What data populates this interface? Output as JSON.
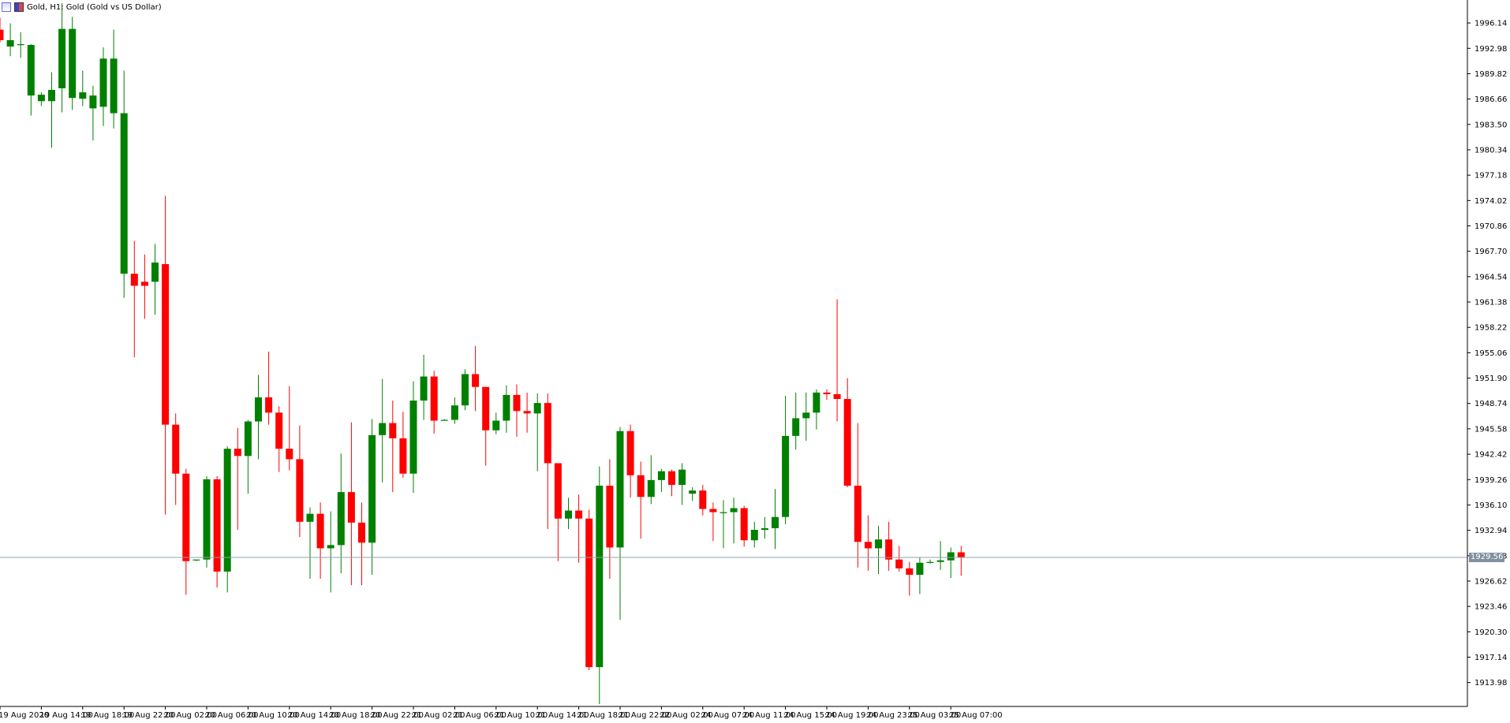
{
  "window": {
    "title": "Gold, H1:  Gold (Gold vs US Dollar)",
    "icons": [
      "window-icon",
      "chart-type-icon"
    ]
  },
  "colors": {
    "bull": "#008000",
    "bear": "#ff0000",
    "bid_line": "#8fa0b0",
    "bid_tag_bg": "#8090a0",
    "axis": "#000000",
    "background": "#ffffff"
  },
  "bid": {
    "price_label": "1929.56",
    "price": 1929.56
  },
  "chart_data": {
    "type": "candlestick",
    "symbol": "Gold",
    "timeframe": "H1",
    "ylim": [
      1911.0,
      1999.0
    ],
    "y_ticks": [
      "1996.14",
      "1992.98",
      "1989.82",
      "1986.66",
      "1983.50",
      "1980.34",
      "1977.18",
      "1974.02",
      "1970.86",
      "1967.70",
      "1964.54",
      "1961.38",
      "1958.22",
      "1955.06",
      "1951.90",
      "1948.74",
      "1945.58",
      "1942.42",
      "1939.26",
      "1936.10",
      "1932.94",
      "1929.78",
      "1926.62",
      "1923.46",
      "1920.30",
      "1917.14",
      "1913.98"
    ],
    "x_ticks": [
      {
        "label": "19 Aug 2020",
        "bar": 0
      },
      {
        "label": "19 Aug 14:00",
        "bar": 4
      },
      {
        "label": "19 Aug 18:00",
        "bar": 8
      },
      {
        "label": "19 Aug 22:00",
        "bar": 12
      },
      {
        "label": "20 Aug 02:00",
        "bar": 16
      },
      {
        "label": "20 Aug 06:00",
        "bar": 20
      },
      {
        "label": "20 Aug 10:00",
        "bar": 24
      },
      {
        "label": "20 Aug 14:00",
        "bar": 28
      },
      {
        "label": "20 Aug 18:00",
        "bar": 32
      },
      {
        "label": "20 Aug 22:00",
        "bar": 36
      },
      {
        "label": "21 Aug 02:00",
        "bar": 40
      },
      {
        "label": "21 Aug 06:00",
        "bar": 44
      },
      {
        "label": "21 Aug 10:00",
        "bar": 48
      },
      {
        "label": "21 Aug 14:00",
        "bar": 52
      },
      {
        "label": "21 Aug 18:00",
        "bar": 56
      },
      {
        "label": "21 Aug 22:00",
        "bar": 60
      },
      {
        "label": "22 Aug 02:00",
        "bar": 64
      },
      {
        "label": "24 Aug 07:00",
        "bar": 68
      },
      {
        "label": "24 Aug 11:00",
        "bar": 72
      },
      {
        "label": "24 Aug 15:00",
        "bar": 76
      },
      {
        "label": "24 Aug 19:00",
        "bar": 80
      },
      {
        "label": "24 Aug 23:00",
        "bar": 84
      },
      {
        "label": "25 Aug 03:00",
        "bar": 88
      },
      {
        "label": "25 Aug 07:00",
        "bar": 92
      }
    ],
    "candles": [
      {
        "o": 1995.3,
        "h": 1996.8,
        "l": 1993.7,
        "c": 1994.0
      },
      {
        "o": 1993.2,
        "h": 1996.1,
        "l": 1992.0,
        "c": 1994.0
      },
      {
        "o": 1993.5,
        "h": 1995.0,
        "l": 1991.8,
        "c": 1993.5
      },
      {
        "o": 1987.1,
        "h": 1993.5,
        "l": 1984.6,
        "c": 1993.4
      },
      {
        "o": 1986.4,
        "h": 1987.5,
        "l": 1985.8,
        "c": 1987.2
      },
      {
        "o": 1986.4,
        "h": 1990.0,
        "l": 1980.6,
        "c": 1987.8
      },
      {
        "o": 1988.0,
        "h": 1998.6,
        "l": 1985.0,
        "c": 1995.4
      },
      {
        "o": 1986.8,
        "h": 1996.9,
        "l": 1985.3,
        "c": 1995.4
      },
      {
        "o": 1986.7,
        "h": 1990.2,
        "l": 1985.8,
        "c": 1987.5
      },
      {
        "o": 1985.5,
        "h": 1988.3,
        "l": 1981.5,
        "c": 1987.1
      },
      {
        "o": 1985.7,
        "h": 1993.1,
        "l": 1983.3,
        "c": 1991.7
      },
      {
        "o": 1984.9,
        "h": 1995.3,
        "l": 1983.0,
        "c": 1991.7
      },
      {
        "o": 1964.9,
        "h": 1990.2,
        "l": 1961.9,
        "c": 1984.9
      },
      {
        "o": 1964.9,
        "h": 1969.0,
        "l": 1954.5,
        "c": 1963.4
      },
      {
        "o": 1963.9,
        "h": 1967.3,
        "l": 1959.3,
        "c": 1963.4
      },
      {
        "o": 1963.9,
        "h": 1968.6,
        "l": 1959.8,
        "c": 1966.3
      },
      {
        "o": 1966.1,
        "h": 1974.6,
        "l": 1934.9,
        "c": 1946.1
      },
      {
        "o": 1946.1,
        "h": 1947.5,
        "l": 1936.1,
        "c": 1940.0
      },
      {
        "o": 1940.0,
        "h": 1940.6,
        "l": 1924.9,
        "c": 1929.1
      },
      {
        "o": 1929.2,
        "h": 1929.3,
        "l": 1929.1,
        "c": 1929.3
      },
      {
        "o": 1929.3,
        "h": 1939.7,
        "l": 1928.3,
        "c": 1939.3
      },
      {
        "o": 1939.3,
        "h": 1939.7,
        "l": 1925.8,
        "c": 1927.8
      },
      {
        "o": 1927.8,
        "h": 1943.4,
        "l": 1925.2,
        "c": 1943.1
      },
      {
        "o": 1943.1,
        "h": 1945.7,
        "l": 1933.0,
        "c": 1942.2
      },
      {
        "o": 1942.2,
        "h": 1946.7,
        "l": 1937.5,
        "c": 1946.5
      },
      {
        "o": 1946.5,
        "h": 1952.3,
        "l": 1941.8,
        "c": 1949.5
      },
      {
        "o": 1949.5,
        "h": 1955.2,
        "l": 1946.1,
        "c": 1947.6
      },
      {
        "o": 1947.6,
        "h": 1948.4,
        "l": 1940.2,
        "c": 1943.1
      },
      {
        "o": 1943.1,
        "h": 1950.9,
        "l": 1940.4,
        "c": 1941.8
      },
      {
        "o": 1941.8,
        "h": 1946.0,
        "l": 1932.1,
        "c": 1934.0
      },
      {
        "o": 1934.0,
        "h": 1935.8,
        "l": 1926.9,
        "c": 1935.0
      },
      {
        "o": 1935.0,
        "h": 1936.4,
        "l": 1926.9,
        "c": 1930.7
      },
      {
        "o": 1930.7,
        "h": 1935.3,
        "l": 1925.2,
        "c": 1931.1
      },
      {
        "o": 1931.1,
        "h": 1942.5,
        "l": 1927.6,
        "c": 1937.7
      },
      {
        "o": 1937.7,
        "h": 1946.4,
        "l": 1926.1,
        "c": 1933.9
      },
      {
        "o": 1933.9,
        "h": 1936.4,
        "l": 1926.1,
        "c": 1931.4
      },
      {
        "o": 1931.4,
        "h": 1946.8,
        "l": 1927.4,
        "c": 1944.8
      },
      {
        "o": 1944.8,
        "h": 1951.8,
        "l": 1938.9,
        "c": 1946.3
      },
      {
        "o": 1946.3,
        "h": 1949.1,
        "l": 1937.7,
        "c": 1944.4
      },
      {
        "o": 1944.4,
        "h": 1947.7,
        "l": 1939.5,
        "c": 1940.0
      },
      {
        "o": 1940.0,
        "h": 1951.5,
        "l": 1937.6,
        "c": 1949.1
      },
      {
        "o": 1949.1,
        "h": 1954.8,
        "l": 1946.7,
        "c": 1952.1
      },
      {
        "o": 1952.1,
        "h": 1952.8,
        "l": 1945.0,
        "c": 1946.6
      },
      {
        "o": 1946.7,
        "h": 1946.8,
        "l": 1946.6,
        "c": 1946.7
      },
      {
        "o": 1946.7,
        "h": 1949.5,
        "l": 1946.2,
        "c": 1948.5
      },
      {
        "o": 1948.5,
        "h": 1953.0,
        "l": 1947.9,
        "c": 1952.4
      },
      {
        "o": 1952.4,
        "h": 1955.9,
        "l": 1947.8,
        "c": 1950.8
      },
      {
        "o": 1950.8,
        "h": 1950.8,
        "l": 1941.0,
        "c": 1945.4
      },
      {
        "o": 1945.4,
        "h": 1947.6,
        "l": 1944.9,
        "c": 1946.6
      },
      {
        "o": 1946.6,
        "h": 1951.0,
        "l": 1945.1,
        "c": 1949.8
      },
      {
        "o": 1949.8,
        "h": 1951.1,
        "l": 1944.6,
        "c": 1947.8
      },
      {
        "o": 1947.8,
        "h": 1950.1,
        "l": 1945.1,
        "c": 1947.5
      },
      {
        "o": 1947.5,
        "h": 1950.0,
        "l": 1940.3,
        "c": 1948.8
      },
      {
        "o": 1948.8,
        "h": 1950.0,
        "l": 1933.1,
        "c": 1941.3
      },
      {
        "o": 1941.3,
        "h": 1941.3,
        "l": 1929.1,
        "c": 1934.4
      },
      {
        "o": 1934.4,
        "h": 1937.0,
        "l": 1933.1,
        "c": 1935.4
      },
      {
        "o": 1935.4,
        "h": 1937.4,
        "l": 1928.9,
        "c": 1934.4
      },
      {
        "o": 1934.4,
        "h": 1935.5,
        "l": 1915.5,
        "c": 1915.9
      },
      {
        "o": 1915.9,
        "h": 1940.9,
        "l": 1911.3,
        "c": 1938.5
      },
      {
        "o": 1938.5,
        "h": 1941.8,
        "l": 1926.9,
        "c": 1930.8
      },
      {
        "o": 1930.8,
        "h": 1945.8,
        "l": 1921.8,
        "c": 1945.3
      },
      {
        "o": 1945.3,
        "h": 1946.1,
        "l": 1937.0,
        "c": 1939.8
      },
      {
        "o": 1939.8,
        "h": 1941.5,
        "l": 1931.9,
        "c": 1937.1
      },
      {
        "o": 1937.1,
        "h": 1942.3,
        "l": 1936.2,
        "c": 1939.2
      },
      {
        "o": 1939.2,
        "h": 1940.6,
        "l": 1937.7,
        "c": 1940.3
      },
      {
        "o": 1940.3,
        "h": 1940.5,
        "l": 1937.2,
        "c": 1938.6
      },
      {
        "o": 1938.6,
        "h": 1941.3,
        "l": 1936.1,
        "c": 1940.5
      },
      {
        "o": 1937.5,
        "h": 1938.3,
        "l": 1936.6,
        "c": 1937.9
      },
      {
        "o": 1937.9,
        "h": 1938.6,
        "l": 1934.8,
        "c": 1935.6
      },
      {
        "o": 1935.6,
        "h": 1936.4,
        "l": 1931.6,
        "c": 1935.2
      },
      {
        "o": 1935.2,
        "h": 1936.7,
        "l": 1930.7,
        "c": 1935.2
      },
      {
        "o": 1935.2,
        "h": 1937.0,
        "l": 1931.3,
        "c": 1935.7
      },
      {
        "o": 1935.7,
        "h": 1936.0,
        "l": 1930.9,
        "c": 1931.7
      },
      {
        "o": 1931.7,
        "h": 1934.0,
        "l": 1930.8,
        "c": 1933.0
      },
      {
        "o": 1933.0,
        "h": 1934.6,
        "l": 1931.9,
        "c": 1933.2
      },
      {
        "o": 1933.2,
        "h": 1938.1,
        "l": 1930.6,
        "c": 1934.6
      },
      {
        "o": 1934.6,
        "h": 1949.7,
        "l": 1933.7,
        "c": 1944.7
      },
      {
        "o": 1944.7,
        "h": 1950.1,
        "l": 1943.0,
        "c": 1946.9
      },
      {
        "o": 1946.9,
        "h": 1950.1,
        "l": 1944.1,
        "c": 1947.6
      },
      {
        "o": 1947.6,
        "h": 1950.5,
        "l": 1945.5,
        "c": 1950.1
      },
      {
        "o": 1950.1,
        "h": 1950.5,
        "l": 1949.2,
        "c": 1949.9
      },
      {
        "o": 1949.9,
        "h": 1961.7,
        "l": 1946.5,
        "c": 1949.3
      },
      {
        "o": 1949.3,
        "h": 1951.9,
        "l": 1938.3,
        "c": 1938.5
      },
      {
        "o": 1938.5,
        "h": 1946.3,
        "l": 1928.3,
        "c": 1931.5
      },
      {
        "o": 1931.5,
        "h": 1934.8,
        "l": 1927.9,
        "c": 1930.7
      },
      {
        "o": 1930.7,
        "h": 1933.5,
        "l": 1927.5,
        "c": 1931.8
      },
      {
        "o": 1931.8,
        "h": 1934.0,
        "l": 1927.9,
        "c": 1929.3
      },
      {
        "o": 1929.3,
        "h": 1931.0,
        "l": 1927.8,
        "c": 1928.2
      },
      {
        "o": 1928.2,
        "h": 1929.0,
        "l": 1924.8,
        "c": 1927.4
      },
      {
        "o": 1927.4,
        "h": 1929.6,
        "l": 1925.0,
        "c": 1928.9
      },
      {
        "o": 1928.9,
        "h": 1929.3,
        "l": 1928.8,
        "c": 1929.0
      },
      {
        "o": 1929.0,
        "h": 1931.6,
        "l": 1928.0,
        "c": 1929.2
      },
      {
        "o": 1929.2,
        "h": 1930.8,
        "l": 1927.0,
        "c": 1930.2
      },
      {
        "o": 1930.2,
        "h": 1931.0,
        "l": 1927.3,
        "c": 1929.6
      }
    ]
  }
}
